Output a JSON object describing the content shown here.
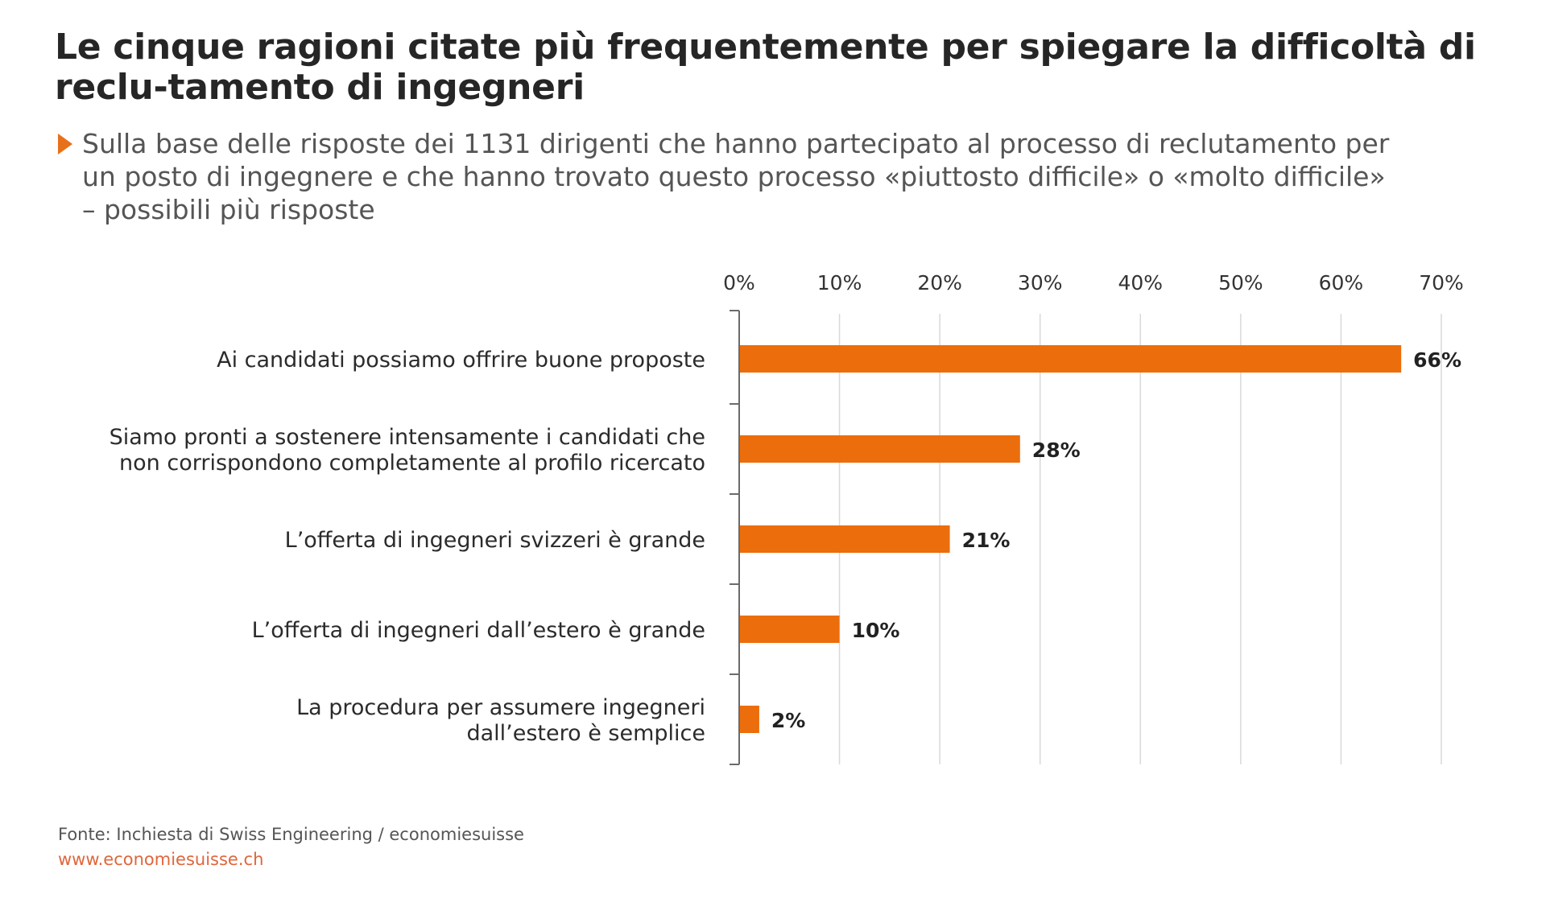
{
  "title": "Le cinque ragioni citate più frequentemente per spiegare la difficoltà di reclu-tamento di ingegneri",
  "subtitle": "Sulla base delle risposte dei 1131 dirigenti che hanno partecipato al processo di reclutamento per\nun posto di ingegnere e che hanno trovato questo processo «piuttosto difficile» o «molto difficile»\n– possibili più risposte",
  "footer": {
    "source": "Fonte: Inchiesta di Swiss Engineering / economiesuisse",
    "url": "www.economiesuisse.ch"
  },
  "colors": {
    "bar": "#ec6d0b",
    "accent": "#e8701a",
    "url": "#e0663b",
    "grid": "#d9d9d9",
    "axis": "#6b6b6b"
  },
  "chart_data": {
    "type": "bar",
    "orientation": "horizontal",
    "categories": [
      "Ai candidati possiamo offrire buone proposte",
      "Siamo pronti a sostenere intensamente i candidati che\nnon corrispondono completamente al profilo ricercato",
      "L’offerta di ingegneri svizzeri è grande",
      "L’offerta di ingegneri dall’estero è grande",
      "La procedura  per assumere ingegneri\ndall’estero è semplice"
    ],
    "values": [
      66,
      28,
      21,
      10,
      2
    ],
    "value_labels": [
      "66%",
      "28%",
      "21%",
      "10%",
      "2%"
    ],
    "xlim": [
      0,
      70
    ],
    "xticks": [
      0,
      10,
      20,
      30,
      40,
      50,
      60,
      70
    ],
    "xtick_labels": [
      "0%",
      "10%",
      "20%",
      "30%",
      "40%",
      "50%",
      "60%",
      "70%"
    ],
    "xlabel": "",
    "ylabel": "",
    "axis_position": "top",
    "grid": true,
    "legend": "none"
  }
}
